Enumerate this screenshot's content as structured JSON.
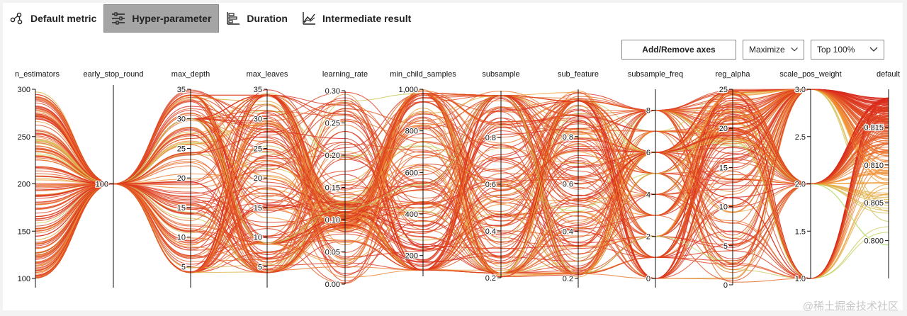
{
  "tabs": [
    {
      "label": "Default metric",
      "icon": "nodes-icon",
      "active": false
    },
    {
      "label": "Hyper-parameter",
      "icon": "sliders-icon",
      "active": true
    },
    {
      "label": "Duration",
      "icon": "bar-chart-icon",
      "active": false
    },
    {
      "label": "Intermediate result",
      "icon": "line-chart-icon",
      "active": false
    }
  ],
  "toolbar": {
    "add_remove_label": "Add/Remove axes",
    "maximize_label": "Maximize",
    "top_label": "Top 100%"
  },
  "watermark": "@稀土掘金技术社区",
  "chart_data": {
    "type": "parallel-coordinates",
    "line_count": 180,
    "color_scale": {
      "low": "#a6f27a",
      "mid": "#f29a35",
      "high": "#d8261a"
    },
    "axes": [
      {
        "name": "n_estimators",
        "range": [
          100,
          300
        ],
        "ticks": [
          100,
          150,
          200,
          250,
          300
        ]
      },
      {
        "name": "early_stop_round",
        "range": [
          0,
          200
        ],
        "ticks": [
          100
        ]
      },
      {
        "name": "max_depth",
        "range": [
          3,
          35
        ],
        "ticks": [
          5,
          10,
          15,
          20,
          25,
          30,
          35
        ]
      },
      {
        "name": "max_leaves",
        "range": [
          3,
          35
        ],
        "ticks": [
          5,
          10,
          15,
          20,
          25,
          30,
          35
        ]
      },
      {
        "name": "learning_rate",
        "range": [
          0,
          0.3
        ],
        "ticks": [
          "0.00",
          "0.05",
          "0.10",
          "0.15",
          "0.20",
          "0.25",
          "0.30"
        ]
      },
      {
        "name": "min_child_samples",
        "range": [
          100,
          1000
        ],
        "ticks": [
          "200",
          "400",
          "600",
          "800",
          "1,000"
        ]
      },
      {
        "name": "subsample",
        "range": [
          0.2,
          1.0
        ],
        "ticks": [
          "0.2",
          "0.4",
          "0.6",
          "0.8"
        ]
      },
      {
        "name": "sub_feature",
        "range": [
          0.2,
          1.0
        ],
        "ticks": [
          "0.2",
          "0.4",
          "0.6",
          "0.8"
        ]
      },
      {
        "name": "subsample_freq",
        "range": [
          0,
          9
        ],
        "ticks": [
          "0",
          "2",
          "4",
          "6",
          "8"
        ]
      },
      {
        "name": "reg_alpha",
        "range": [
          0,
          25
        ],
        "ticks": [
          "0",
          "5",
          "10",
          "15",
          "20",
          "25"
        ]
      },
      {
        "name": "scale_pos_weight",
        "range": [
          1.0,
          3.0
        ],
        "ticks": [
          "1.0",
          "1.5",
          "2.0",
          "2.5",
          "3.0"
        ]
      },
      {
        "name": "default",
        "range": [
          0.795,
          0.82
        ],
        "ticks": [
          "0.800",
          "0.805",
          "0.810",
          "0.815"
        ]
      }
    ]
  }
}
